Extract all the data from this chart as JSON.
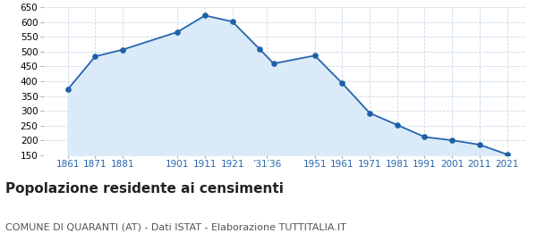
{
  "actual_years": [
    1861,
    1871,
    1881,
    1901,
    1911,
    1921,
    1931,
    1936,
    1951,
    1961,
    1971,
    1981,
    1991,
    2001,
    2011,
    2021
  ],
  "y_vals": [
    372,
    484,
    507,
    567,
    623,
    602,
    508,
    460,
    487,
    393,
    292,
    252,
    211,
    200,
    185,
    152
  ],
  "tick_positions": [
    1861,
    1871,
    1881,
    1901,
    1911,
    1921,
    1933.5,
    1951,
    1961,
    1971,
    1981,
    1991,
    2001,
    2011,
    2021
  ],
  "tick_labels": [
    "1861",
    "1871",
    "1881",
    "1901",
    "1911",
    "1921",
    "’31′36",
    "1951",
    "1961",
    "1971",
    "1981",
    "1991",
    "2001",
    "2011",
    "2021"
  ],
  "line_color": "#2566ae",
  "fill_color": "#daeaf8",
  "marker_color": "#1f5fa6",
  "background_color": "#ffffff",
  "grid_color": "#c8d8e8",
  "ylim": [
    150,
    650
  ],
  "yticks": [
    150,
    200,
    250,
    300,
    350,
    400,
    450,
    500,
    550,
    600,
    650
  ],
  "xlim": [
    1852,
    2028
  ],
  "title": "Popolazione residente ai censimenti",
  "subtitle": "COMUNE DI QUARANTI (AT) - Dati ISTAT - Elaborazione TUTTITALIA.IT",
  "title_fontsize": 11,
  "subtitle_fontsize": 8,
  "tick_fontsize": 7.5,
  "ytick_fontsize": 7.5
}
